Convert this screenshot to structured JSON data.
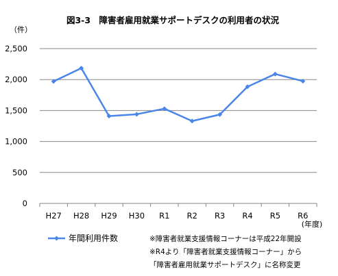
{
  "chart_data": {
    "type": "line",
    "title": "図3-3　障害者雇用就業サポートデスクの利用者の状況",
    "y_unit": "（件）",
    "x_unit": "(年度)",
    "categories": [
      "H27",
      "H28",
      "H29",
      "H30",
      "R1",
      "R2",
      "R3",
      "R4",
      "R5",
      "R6"
    ],
    "series": [
      {
        "name": "年間利用件数",
        "values": [
          1970,
          2185,
          1410,
          1440,
          1530,
          1330,
          1435,
          1885,
          2090,
          1975
        ]
      }
    ],
    "yticks": [
      "0",
      "500",
      "1,000",
      "1,500",
      "2,000",
      "2,500"
    ],
    "ylim": [
      0,
      2500
    ],
    "grid": true,
    "legend_position": "bottom-left",
    "series_color": "#4a86e8",
    "notes": [
      "※障害者就業支援情報コーナーは平成22年開設",
      "※R4より「障害者就業支援情報コーナー」から",
      "「障害者雇用就業サポートデスク」に名称変更"
    ]
  }
}
